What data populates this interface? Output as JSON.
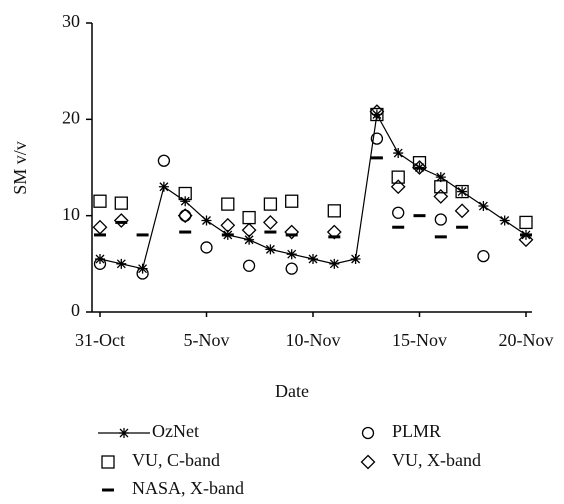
{
  "chart_data": {
    "type": "scatter",
    "x_label": "Date",
    "y_label": "SM v/v",
    "categories": [
      "31-Oct",
      null,
      null,
      null,
      null,
      "5-Nov",
      null,
      null,
      null,
      null,
      "10-Nov",
      null,
      null,
      null,
      null,
      "15-Nov",
      null,
      null,
      null,
      null,
      "20-Nov"
    ],
    "ylim": [
      0,
      30
    ],
    "yticks": [
      0,
      10,
      20,
      30
    ],
    "series": [
      {
        "name": "OzNet",
        "color": "#000000",
        "marker": "asterisk",
        "line": true,
        "values": [
          5.5,
          5.0,
          4.5,
          13.0,
          11.5,
          9.5,
          8.0,
          7.5,
          6.5,
          6.0,
          5.5,
          5.0,
          5.5,
          20.5,
          16.5,
          15.0,
          14.0,
          12.5,
          11.0,
          9.5,
          8.0
        ]
      },
      {
        "name": "PLMR",
        "color": "#000000",
        "marker": "circle",
        "line": false,
        "values": [
          5.0,
          null,
          4.0,
          15.7,
          10.0,
          6.7,
          null,
          4.8,
          null,
          4.5,
          null,
          null,
          null,
          18.0,
          10.3,
          null,
          9.6,
          null,
          5.8,
          null,
          null
        ]
      },
      {
        "name": "VU, C-band",
        "color": "#000000",
        "marker": "square",
        "line": false,
        "values": [
          11.5,
          11.3,
          null,
          null,
          12.3,
          null,
          11.2,
          9.8,
          11.2,
          11.5,
          null,
          10.5,
          null,
          20.5,
          14.0,
          15.5,
          13.0,
          12.5,
          null,
          null,
          9.3
        ]
      },
      {
        "name": "VU, X-band",
        "color": "#000000",
        "marker": "diamond",
        "line": false,
        "values": [
          8.8,
          9.5,
          null,
          null,
          10.0,
          null,
          9.0,
          8.5,
          9.3,
          8.3,
          null,
          8.3,
          null,
          20.8,
          13.0,
          15.0,
          12.0,
          10.5,
          null,
          null,
          7.5
        ]
      },
      {
        "name": "NASA, X-band",
        "color": "#000000",
        "marker": "dash",
        "line": false,
        "values": [
          8.0,
          9.3,
          8.0,
          null,
          8.3,
          null,
          8.0,
          null,
          8.3,
          8.0,
          null,
          7.8,
          null,
          16.0,
          8.8,
          10.0,
          7.8,
          8.8,
          null,
          null,
          8.0
        ]
      }
    ]
  }
}
